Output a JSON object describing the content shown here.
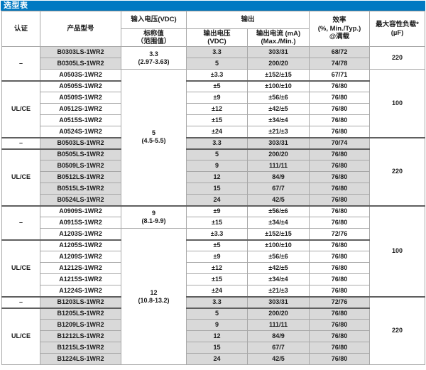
{
  "title": "选型表",
  "colors": {
    "title_bar_blue": "#0079c2",
    "row_shading_gray": "#d9d9d9",
    "grid_line": "#a8a8a8",
    "group_divider": "#5f5f5f",
    "title_text": "#ffffff",
    "body_text": "#1a1a1a"
  },
  "header": {
    "cert": "认证",
    "model": "产品型号",
    "input_voltage": "输入电压(VDC)",
    "input_nominal": "标称值\n（范围值）",
    "output": "输出",
    "output_voltage": "输出电压\n(VDC)",
    "output_current": "输出电流 (mA)\n(Max./Min.)",
    "efficiency": "效率\n(%, Min./Typ.)\n@满载",
    "max_cap_load": "最大容性负载*\n(µF)"
  },
  "table": {
    "rows": [
      {
        "cert": {
          "text": "–",
          "span": 3
        },
        "model": "B0303LS-1WR2",
        "input": {
          "text": "3.3\n(2.97-3.63)",
          "span": 2
        },
        "vout": "3.3",
        "iout": "303/31",
        "eff": "68/72",
        "cap": {
          "text": "220",
          "span": 2
        },
        "shaded": true,
        "group": false
      },
      {
        "model": "B0305LS-1WR2",
        "vout": "5",
        "iout": "200/20",
        "eff": "74/78",
        "shaded": true,
        "group": false
      },
      {
        "model": "A0503S-1WR2",
        "input": {
          "text": "5\n(4.5-5.5)",
          "span": 12
        },
        "vout": "±3.3",
        "iout": "±152/±15",
        "eff": "67/71",
        "cap": {
          "text": "100",
          "span": 6
        },
        "shaded": false,
        "group": false
      },
      {
        "cert": {
          "text": "UL/CE",
          "span": 5
        },
        "model": "A0505S-1WR2",
        "vout": "±5",
        "iout": "±100/±10",
        "eff": "76/80",
        "shaded": false,
        "group": true
      },
      {
        "model": "A0509S-1WR2",
        "vout": "±9",
        "iout": "±56/±6",
        "eff": "76/80",
        "shaded": false,
        "group": false
      },
      {
        "model": "A0512S-1WR2",
        "vout": "±12",
        "iout": "±42/±5",
        "eff": "76/80",
        "shaded": false,
        "group": false
      },
      {
        "model": "A0515S-1WR2",
        "vout": "±15",
        "iout": "±34/±4",
        "eff": "76/80",
        "shaded": false,
        "group": false
      },
      {
        "model": "A0524S-1WR2",
        "vout": "±24",
        "iout": "±21/±3",
        "eff": "76/80",
        "shaded": false,
        "group": false
      },
      {
        "cert": {
          "text": "–",
          "span": 1
        },
        "model": "B0503LS-1WR2",
        "vout": "3.3",
        "iout": "303/31",
        "eff": "70/74",
        "cap": {
          "text": "220",
          "span": 6
        },
        "shaded": true,
        "group": true
      },
      {
        "cert": {
          "text": "UL/CE",
          "span": 5
        },
        "model": "B0505LS-1WR2",
        "vout": "5",
        "iout": "200/20",
        "eff": "76/80",
        "shaded": true,
        "group": true
      },
      {
        "model": "B0509LS-1WR2",
        "vout": "9",
        "iout": "111/11",
        "eff": "76/80",
        "shaded": true,
        "group": false
      },
      {
        "model": "B0512LS-1WR2",
        "vout": "12",
        "iout": "84/9",
        "eff": "76/80",
        "shaded": true,
        "group": false
      },
      {
        "model": "B0515LS-1WR2",
        "vout": "15",
        "iout": "67/7",
        "eff": "76/80",
        "shaded": true,
        "group": false
      },
      {
        "model": "B0524LS-1WR2",
        "vout": "24",
        "iout": "42/5",
        "eff": "76/80",
        "shaded": true,
        "group": false
      },
      {
        "cert": {
          "text": "–",
          "span": 3
        },
        "model": "A0909S-1WR2",
        "input": {
          "text": "9\n(8.1-9.9)",
          "span": 2
        },
        "vout": "±9",
        "iout": "±56/±6",
        "eff": "76/80",
        "cap": {
          "text": "100",
          "span": 8
        },
        "shaded": false,
        "group": true
      },
      {
        "model": "A0915S-1WR2",
        "vout": "±15",
        "iout": "±34/±4",
        "eff": "76/80",
        "shaded": false,
        "group": false
      },
      {
        "model": "A1203S-1WR2",
        "input": {
          "text": "12\n(10.8-13.2)",
          "span": 12
        },
        "vout": "±3.3",
        "iout": "±152/±15",
        "eff": "72/76",
        "shaded": false,
        "group": false
      },
      {
        "cert": {
          "text": "UL/CE",
          "span": 5
        },
        "model": "A1205S-1WR2",
        "vout": "±5",
        "iout": "±100/±10",
        "eff": "76/80",
        "shaded": false,
        "group": true
      },
      {
        "model": "A1209S-1WR2",
        "vout": "±9",
        "iout": "±56/±6",
        "eff": "76/80",
        "shaded": false,
        "group": false
      },
      {
        "model": "A1212S-1WR2",
        "vout": "±12",
        "iout": "±42/±5",
        "eff": "76/80",
        "shaded": false,
        "group": false
      },
      {
        "model": "A1215S-1WR2",
        "vout": "±15",
        "iout": "±34/±4",
        "eff": "76/80",
        "shaded": false,
        "group": false
      },
      {
        "model": "A1224S-1WR2",
        "vout": "±24",
        "iout": "±21/±3",
        "eff": "76/80",
        "shaded": false,
        "group": false
      },
      {
        "cert": {
          "text": "–",
          "span": 1
        },
        "model": "B1203LS-1WR2",
        "vout": "3.3",
        "iout": "303/31",
        "eff": "72/76",
        "cap": {
          "text": "220",
          "span": 6
        },
        "shaded": true,
        "group": true
      },
      {
        "cert": {
          "text": "UL/CE",
          "span": 5
        },
        "model": "B1205LS-1WR2",
        "vout": "5",
        "iout": "200/20",
        "eff": "76/80",
        "shaded": true,
        "group": true
      },
      {
        "model": "B1209LS-1WR2",
        "vout": "9",
        "iout": "111/11",
        "eff": "76/80",
        "shaded": true,
        "group": false
      },
      {
        "model": "B1212LS-1WR2",
        "vout": "12",
        "iout": "84/9",
        "eff": "76/80",
        "shaded": true,
        "group": false
      },
      {
        "model": "B1215LS-1WR2",
        "vout": "15",
        "iout": "67/7",
        "eff": "76/80",
        "shaded": true,
        "group": false
      },
      {
        "model": "B1224LS-1WR2",
        "vout": "24",
        "iout": "42/5",
        "eff": "76/80",
        "shaded": true,
        "group": false
      }
    ]
  }
}
